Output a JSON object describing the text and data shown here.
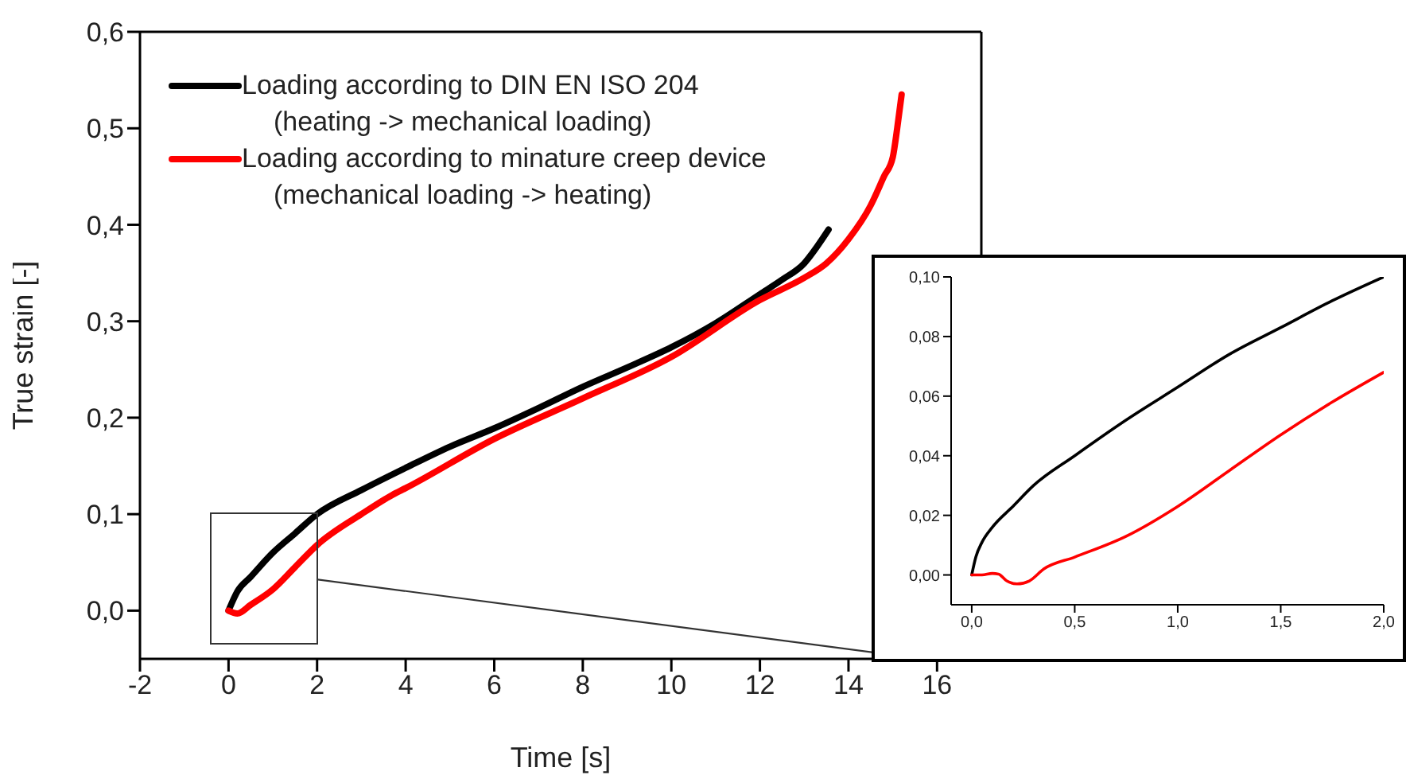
{
  "chart_data": [
    {
      "type": "line",
      "xlabel": "Time [s]",
      "ylabel": "True strain [-]",
      "xlim": [
        -2,
        17
      ],
      "ylim": [
        -0.05,
        0.6
      ],
      "xticks": [
        -2,
        0,
        2,
        4,
        6,
        8,
        10,
        12,
        14,
        16
      ],
      "yticks": [
        {
          "value": 0,
          "label": "0,0"
        },
        {
          "value": 0.1,
          "label": "0,1"
        },
        {
          "value": 0.2,
          "label": "0,2"
        },
        {
          "value": 0.3,
          "label": "0,3"
        },
        {
          "value": 0.4,
          "label": "0,4"
        },
        {
          "value": 0.5,
          "label": "0,5"
        },
        {
          "value": 0.6,
          "label": "0,6"
        }
      ],
      "legend": "top left",
      "marker": "none",
      "line_style": "solid",
      "series": [
        {
          "name": "Loading according to DIN EN ISO 204\n(heating -> mechanical loading)",
          "color": "#000000",
          "x": [
            0,
            0.2,
            0.5,
            1,
            1.5,
            2,
            3,
            4,
            5,
            6,
            7,
            8,
            9,
            10,
            11,
            12,
            12.5,
            13,
            13.3,
            13.55
          ],
          "values": [
            0,
            0.02,
            0.035,
            0.06,
            0.08,
            0.1,
            0.125,
            0.148,
            0.17,
            0.189,
            0.21,
            0.232,
            0.252,
            0.273,
            0.298,
            0.328,
            0.343,
            0.36,
            0.378,
            0.395
          ]
        },
        {
          "name": "Loading according to minature creep device\n(mechanical loading -> heating)",
          "color": "#ff0000",
          "x": [
            0,
            0.2,
            0.5,
            1,
            1.5,
            2,
            3,
            3.7,
            4,
            6,
            8,
            10,
            12,
            13,
            13.5,
            14,
            14.5,
            14.8,
            15,
            15.1,
            15.2
          ],
          "values": [
            0,
            -0.003,
            0.006,
            0.022,
            0.045,
            0.068,
            0.1,
            0.12,
            0.127,
            0.178,
            0.22,
            0.263,
            0.322,
            0.345,
            0.36,
            0.385,
            0.42,
            0.45,
            0.47,
            0.5,
            0.535
          ]
        }
      ]
    },
    {
      "type": "line",
      "xlim": [
        -0.1,
        2.0
      ],
      "ylim": [
        -0.01,
        0.1
      ],
      "xticks": [
        {
          "value": 0,
          "label": "0,0"
        },
        {
          "value": 0.5,
          "label": "0,5"
        },
        {
          "value": 1,
          "label": "1,0"
        },
        {
          "value": 1.5,
          "label": "1,5"
        },
        {
          "value": 2,
          "label": "2,0"
        }
      ],
      "yticks": [
        {
          "value": 0,
          "label": "0,00"
        },
        {
          "value": 0.02,
          "label": "0,02"
        },
        {
          "value": 0.04,
          "label": "0,04"
        },
        {
          "value": 0.06,
          "label": "0,06"
        },
        {
          "value": 0.08,
          "label": "0,08"
        },
        {
          "value": 0.1,
          "label": "0,10"
        }
      ],
      "marker": "none",
      "line_style": "solid",
      "series": [
        {
          "color": "#000000",
          "x": [
            0,
            0.02,
            0.05,
            0.1,
            0.2,
            0.3,
            0.5,
            0.75,
            1,
            1.25,
            1.5,
            1.75,
            2
          ],
          "values": [
            0,
            0.006,
            0.011,
            0.016,
            0.023,
            0.03,
            0.04,
            0.052,
            0.063,
            0.074,
            0.083,
            0.092,
            0.1
          ]
        },
        {
          "color": "#ff0000",
          "x": [
            0,
            0.05,
            0.1,
            0.13,
            0.17,
            0.22,
            0.28,
            0.35,
            0.5,
            0.75,
            1,
            1.25,
            1.5,
            1.75,
            2
          ],
          "values": [
            0,
            0,
            0.0005,
            0.0003,
            -0.002,
            -0.003,
            -0.002,
            0.002,
            0.006,
            0.013,
            0.023,
            0.035,
            0.047,
            0.058,
            0.068
          ]
        }
      ]
    }
  ]
}
